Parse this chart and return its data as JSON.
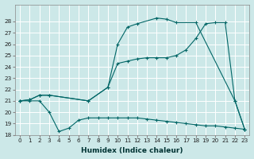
{
  "xlabel": "Humidex (Indice chaleur)",
  "bg_color": "#cce8e8",
  "grid_color": "#ffffff",
  "line_color": "#006666",
  "xlim": [
    -0.5,
    23.5
  ],
  "ylim": [
    18,
    29
  ],
  "yticks": [
    18,
    19,
    20,
    21,
    22,
    23,
    24,
    25,
    26,
    27,
    28
  ],
  "xticks": [
    0,
    1,
    2,
    3,
    4,
    5,
    6,
    7,
    8,
    9,
    10,
    11,
    12,
    13,
    14,
    15,
    16,
    17,
    18,
    19,
    20,
    21,
    22,
    23
  ],
  "series": [
    {
      "x": [
        0,
        1,
        2,
        3,
        7,
        9,
        10,
        11,
        12,
        14,
        15,
        16,
        18,
        22,
        23
      ],
      "y": [
        21.0,
        21.1,
        21.5,
        21.5,
        21.0,
        22.2,
        26.0,
        27.5,
        27.8,
        28.3,
        28.2,
        27.9,
        27.9,
        21.0,
        18.5
      ]
    },
    {
      "x": [
        0,
        1,
        2,
        3,
        7,
        9,
        10,
        11,
        12,
        13,
        14,
        15,
        16,
        17,
        18,
        19,
        20,
        21,
        22,
        23
      ],
      "y": [
        21.0,
        21.1,
        21.5,
        21.5,
        21.0,
        22.2,
        24.3,
        24.5,
        24.7,
        24.8,
        24.8,
        24.8,
        25.0,
        25.5,
        26.5,
        27.8,
        27.9,
        27.9,
        21.0,
        18.5
      ]
    },
    {
      "x": [
        0,
        1,
        2,
        3,
        4,
        5,
        6,
        7,
        8,
        9,
        10,
        11,
        12,
        13,
        14,
        15,
        16,
        17,
        18,
        19,
        20,
        21,
        22,
        23
      ],
      "y": [
        21.0,
        21.0,
        21.0,
        20.0,
        18.3,
        18.6,
        19.3,
        19.5,
        19.5,
        19.5,
        19.5,
        19.5,
        19.5,
        19.4,
        19.3,
        19.2,
        19.1,
        19.0,
        18.9,
        18.8,
        18.8,
        18.7,
        18.6,
        18.5
      ]
    }
  ]
}
